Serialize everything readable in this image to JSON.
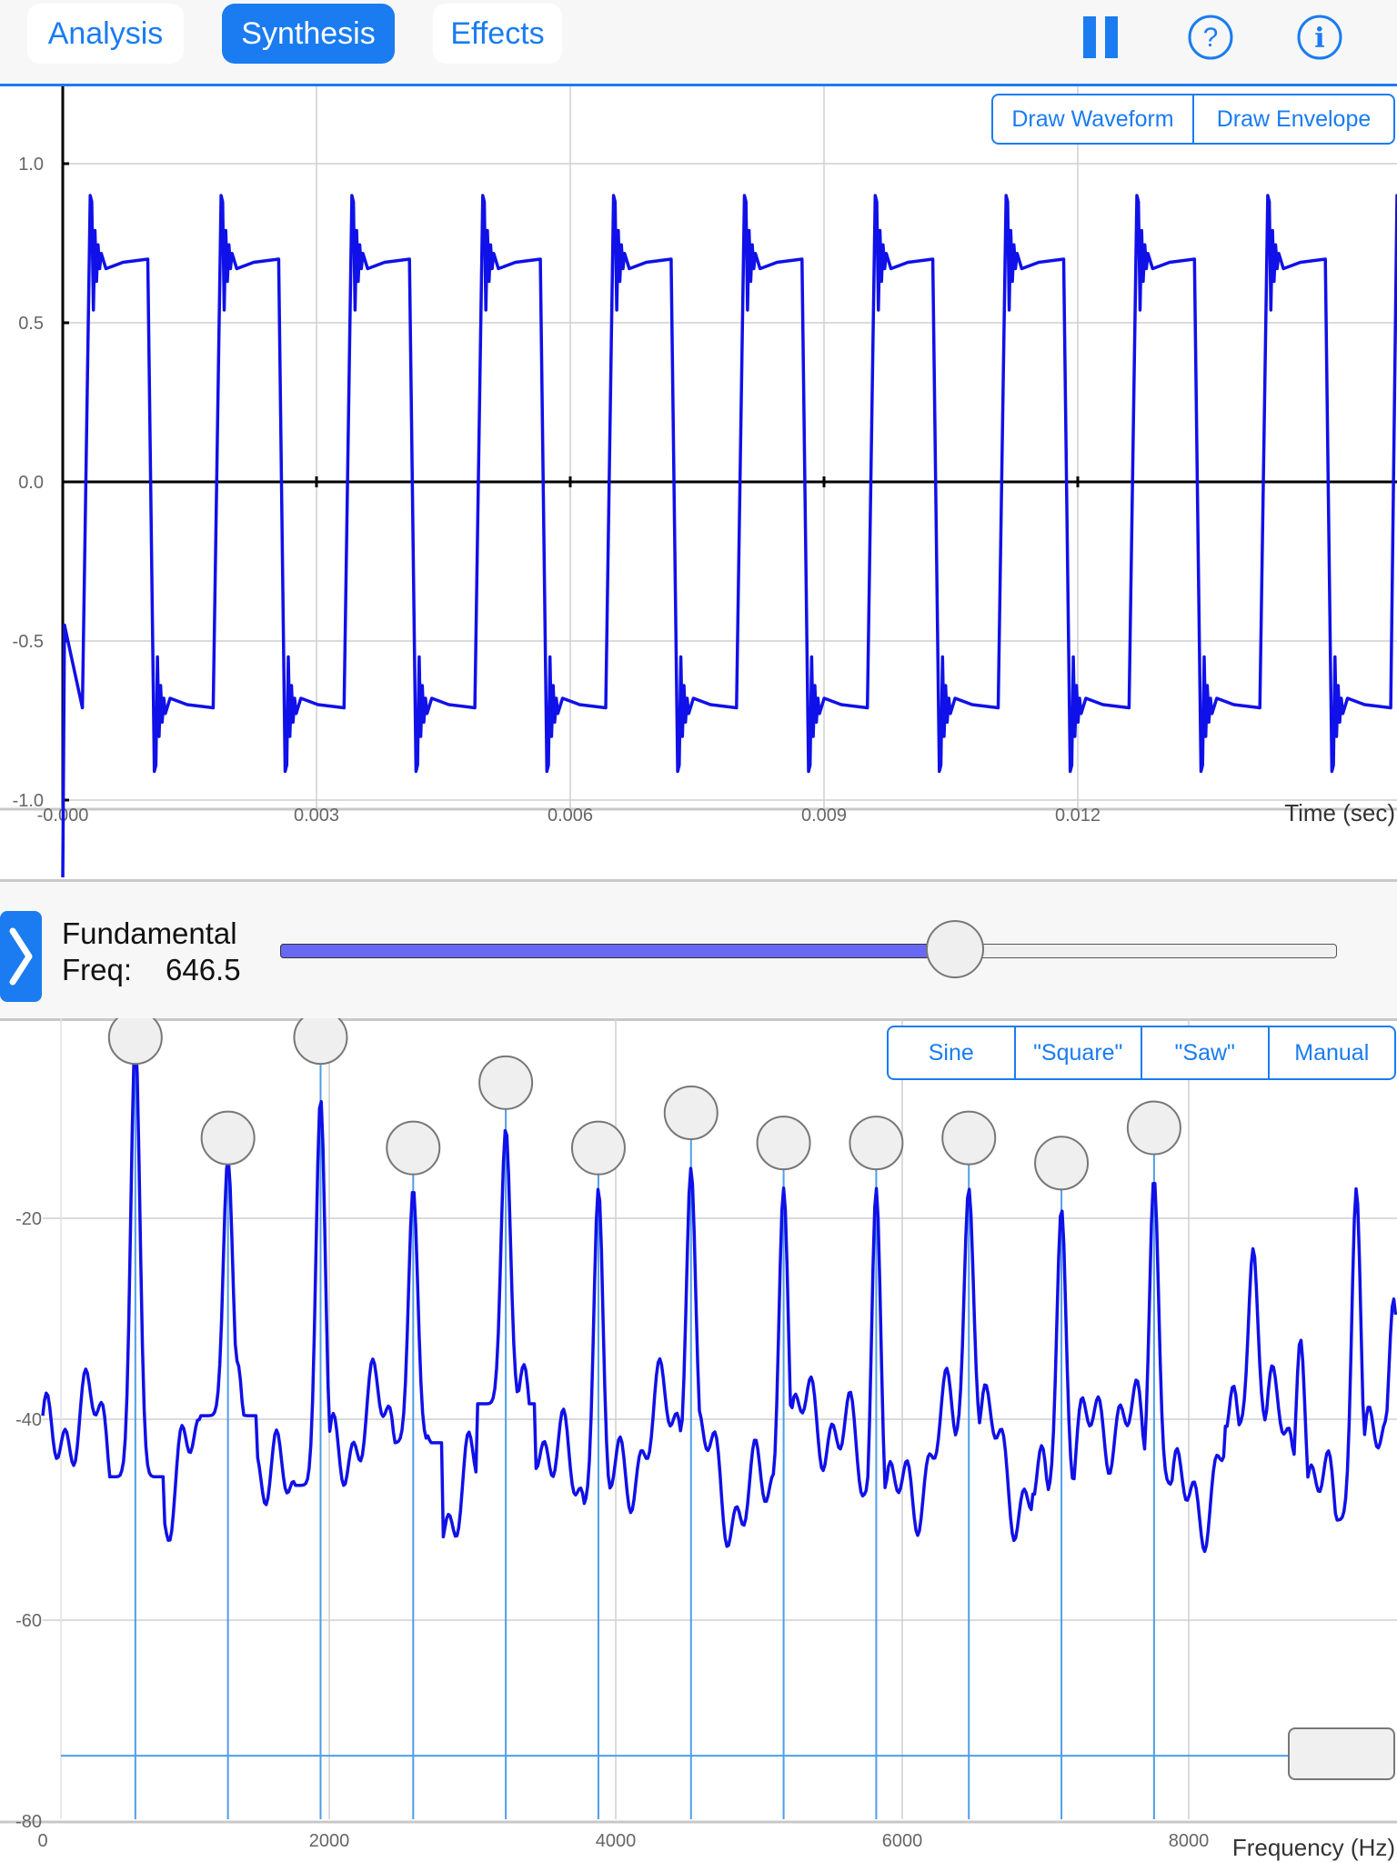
{
  "tabs": [
    {
      "label": "Analysis",
      "active": false
    },
    {
      "label": "Synthesis",
      "active": true
    },
    {
      "label": "Effects",
      "active": false
    }
  ],
  "toolbar_icons": [
    "pause-icon",
    "help-icon",
    "info-icon"
  ],
  "waveform": {
    "buttons": [
      "Draw Waveform",
      "Draw Envelope"
    ],
    "xlabel": "Time (sec)",
    "x_ticks": [
      "-0.000",
      "0.003",
      "0.006",
      "0.009",
      "0.012"
    ],
    "y_ticks": [
      "1.0",
      "0.5",
      "0.0",
      "-0.5",
      "-1.0"
    ]
  },
  "fundamental": {
    "label": "Fundamental",
    "freq_label": "Freq:",
    "freq_value": "646.5",
    "slider_fraction": 0.64
  },
  "spectrum": {
    "buttons": [
      "Sine",
      "\"Square\"",
      "\"Saw\"",
      "Manual"
    ],
    "xlabel": "Frequency (Hz)",
    "x_ticks": [
      "0",
      "2000",
      "4000",
      "6000",
      "8000"
    ],
    "y_ticks": [
      "-20",
      "-40",
      "-60",
      "-80"
    ]
  },
  "chart_data": [
    {
      "type": "line",
      "xlabel": "Time (sec)",
      "ylabel": "",
      "xlim": [
        0,
        0.0147
      ],
      "ylim": [
        -1.25,
        1.25
      ],
      "grid": true,
      "fundamental_hz": 646.5,
      "series": [
        {
          "values_note": "square-like wave, plateaus +0.70 / -0.71 with ringing spikes",
          "high": 0.7,
          "low": -0.71
        }
      ],
      "x_ticks": [
        0,
        0.003,
        0.006,
        0.009,
        0.012
      ],
      "y_ticks": [
        1.0,
        0.5,
        0.0,
        -0.5,
        -1.0
      ]
    },
    {
      "type": "line",
      "xlabel": "Frequency (Hz)",
      "ylabel": "",
      "xlim": [
        0,
        9500
      ],
      "ylim": [
        -80,
        -0.5
      ],
      "grid": true,
      "harmonics_hz": [
        646.5,
        1293,
        1939.5,
        2586,
        3232.5,
        3879,
        4525.5,
        5172,
        5818.5,
        6465,
        7111.5,
        7758
      ],
      "harmonic_peaks_db": [
        -2,
        -14,
        -8,
        -17,
        -11,
        -17,
        -15,
        -17,
        -17,
        -17,
        -19,
        -16
      ],
      "handle_levels_db": [
        -2,
        -12,
        -2,
        -13,
        -6.5,
        -13,
        -9.5,
        -12.5,
        -12.5,
        -12,
        -14.5,
        -11
      ],
      "threshold_db": -73.5,
      "x_ticks": [
        0,
        2000,
        4000,
        6000,
        8000
      ],
      "y_ticks": [
        -20,
        -40,
        -60,
        -80
      ]
    }
  ]
}
